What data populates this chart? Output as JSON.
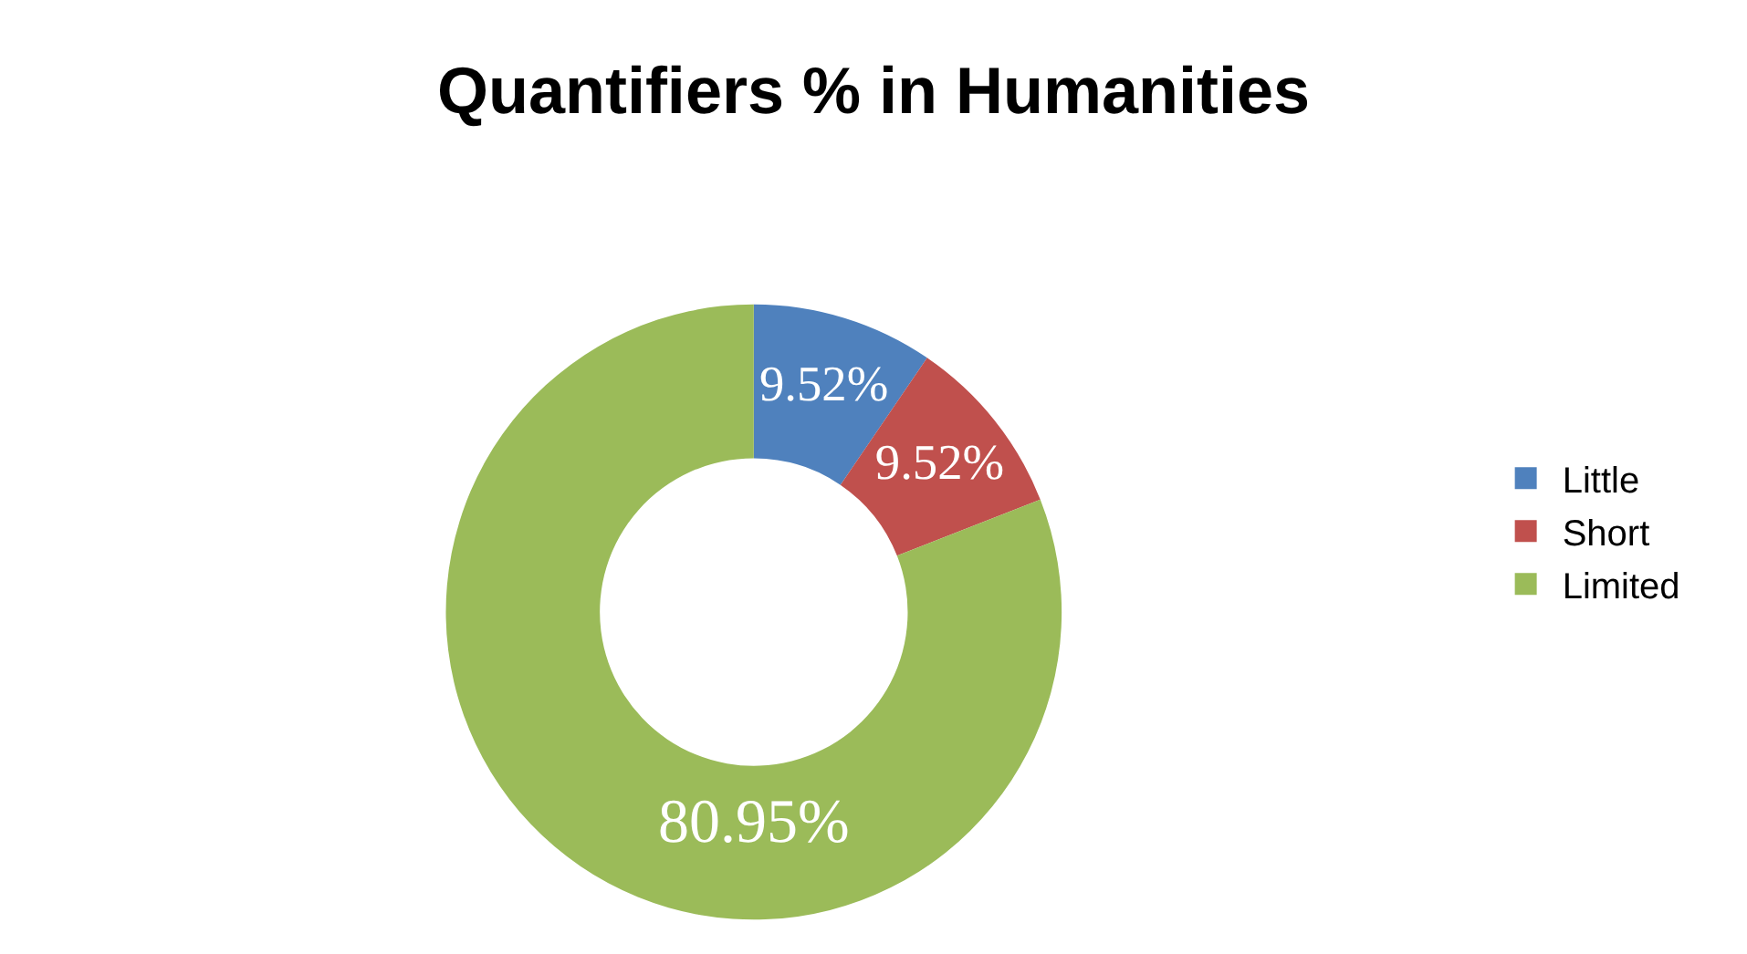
{
  "chart_data": {
    "type": "donut",
    "title": "Quantifiers % in Humanities",
    "categories": [
      "Little",
      "Short",
      "Limited"
    ],
    "values": [
      9.52,
      9.52,
      80.95
    ],
    "colors": [
      "#4f81bd",
      "#c0504d",
      "#9bbb59"
    ],
    "value_labels": [
      "9.52%",
      "9.52%",
      "80.95%"
    ],
    "legend": "right"
  }
}
